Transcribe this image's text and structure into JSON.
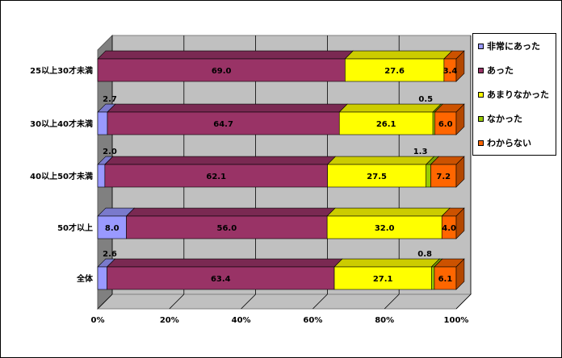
{
  "chart_data": {
    "type": "bar",
    "orientation": "horizontal",
    "stacked": "percent",
    "categories": [
      "25以上30才未満",
      "30以上40才未満",
      "40以上50才未満",
      "50才以上",
      "全体"
    ],
    "series": [
      {
        "name": "非常にあった",
        "color": "#9999ff",
        "values": [
          0,
          2.7,
          2.0,
          8.0,
          2.6
        ],
        "labels": [
          "",
          "2.7",
          "2.0",
          "8.0",
          "2.6"
        ]
      },
      {
        "name": "あった",
        "color": "#993366",
        "values": [
          69.0,
          64.7,
          62.1,
          56.0,
          63.4
        ],
        "labels": [
          "69.0",
          "64.7",
          "62.1",
          "56.0",
          "63.4"
        ]
      },
      {
        "name": "あまりなかった",
        "color": "#ffff00",
        "values": [
          27.6,
          26.1,
          27.5,
          32.0,
          27.1
        ],
        "labels": [
          "27.6",
          "26.1",
          "27.5",
          "32.0",
          "27.1"
        ]
      },
      {
        "name": "なかった",
        "color": "#99cc00",
        "values": [
          0,
          0.5,
          1.3,
          0,
          0.8
        ],
        "labels": [
          "",
          "0.5",
          "1.3",
          "",
          "0.8"
        ]
      },
      {
        "name": "わからない",
        "color": "#ff6600",
        "values": [
          3.4,
          6.0,
          7.2,
          4.0,
          6.1
        ],
        "labels": [
          "3.4",
          "6.0",
          "7.2",
          "4.0",
          "6.1"
        ]
      }
    ],
    "xticks": [
      "0%",
      "20%",
      "40%",
      "60%",
      "80%",
      "100%"
    ],
    "xlim": [
      0,
      100
    ],
    "grid": true,
    "legend_position": "right"
  }
}
